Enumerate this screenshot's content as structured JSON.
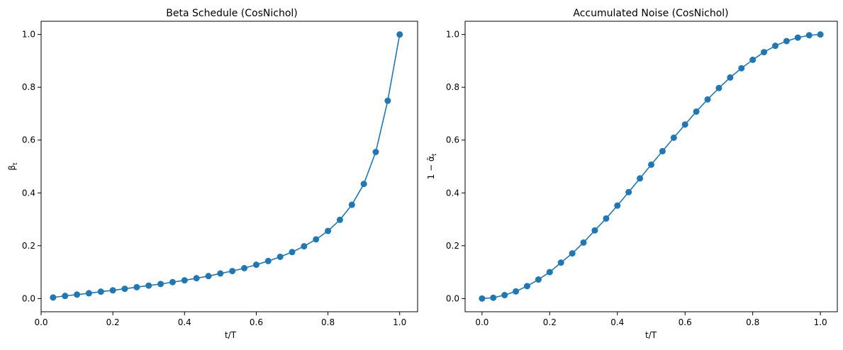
{
  "chart_data": [
    {
      "type": "line",
      "title": "Beta Schedule (CosNichol)",
      "xlabel": "t/T",
      "ylabel_parts": {
        "main": "β",
        "sub": "t"
      },
      "xlim": [
        -0.0,
        1.05
      ],
      "ylim": [
        -0.05,
        1.05
      ],
      "xticks": [
        "0.0",
        "0.2",
        "0.4",
        "0.6",
        "0.8",
        "1.0"
      ],
      "yticks": [
        "0.0",
        "0.2",
        "0.4",
        "0.6",
        "0.8",
        "1.0"
      ],
      "grid": false,
      "series": [
        {
          "color": "#1f77b4",
          "marker": "circle",
          "x": [
            0.0333,
            0.0667,
            0.1,
            0.1333,
            0.1667,
            0.2,
            0.2333,
            0.2667,
            0.3,
            0.3333,
            0.3667,
            0.4,
            0.4333,
            0.4667,
            0.5,
            0.5333,
            0.5667,
            0.6,
            0.6333,
            0.6667,
            0.7,
            0.7333,
            0.7667,
            0.8,
            0.8333,
            0.8667,
            0.9,
            0.9333,
            0.9667,
            1.0
          ],
          "y": [
            0.004,
            0.01,
            0.015,
            0.02,
            0.026,
            0.031,
            0.037,
            0.043,
            0.049,
            0.055,
            0.062,
            0.069,
            0.077,
            0.085,
            0.095,
            0.104,
            0.115,
            0.128,
            0.142,
            0.158,
            0.176,
            0.198,
            0.224,
            0.256,
            0.298,
            0.355,
            0.434,
            0.555,
            0.749,
            1.0
          ]
        }
      ]
    },
    {
      "type": "line",
      "title": "Accumulated Noise (CosNichol)",
      "xlabel": "t/T",
      "ylabel_parts": {
        "main": "1 − ᾱ",
        "sub": "t"
      },
      "xlim": [
        -0.05,
        1.05
      ],
      "ylim": [
        -0.05,
        1.05
      ],
      "xticks": [
        "0.0",
        "0.2",
        "0.4",
        "0.6",
        "0.8",
        "1.0"
      ],
      "yticks": [
        "0.0",
        "0.2",
        "0.4",
        "0.6",
        "0.8",
        "1.0"
      ],
      "grid": false,
      "series": [
        {
          "color": "#1f77b4",
          "marker": "circle",
          "x": [
            0.0,
            0.0333,
            0.0667,
            0.1,
            0.1333,
            0.1667,
            0.2,
            0.2333,
            0.2667,
            0.3,
            0.3333,
            0.3667,
            0.4,
            0.4333,
            0.4667,
            0.5,
            0.5333,
            0.5667,
            0.6,
            0.6333,
            0.6667,
            0.7,
            0.7333,
            0.7667,
            0.8,
            0.8333,
            0.8667,
            0.9,
            0.9333,
            0.9667,
            1.0
          ],
          "y": [
            0.0,
            0.003,
            0.013,
            0.027,
            0.047,
            0.072,
            0.1,
            0.136,
            0.171,
            0.212,
            0.258,
            0.303,
            0.352,
            0.403,
            0.455,
            0.507,
            0.558,
            0.609,
            0.659,
            0.708,
            0.754,
            0.797,
            0.837,
            0.872,
            0.904,
            0.933,
            0.957,
            0.975,
            0.988,
            0.997,
            1.0
          ]
        }
      ]
    }
  ]
}
